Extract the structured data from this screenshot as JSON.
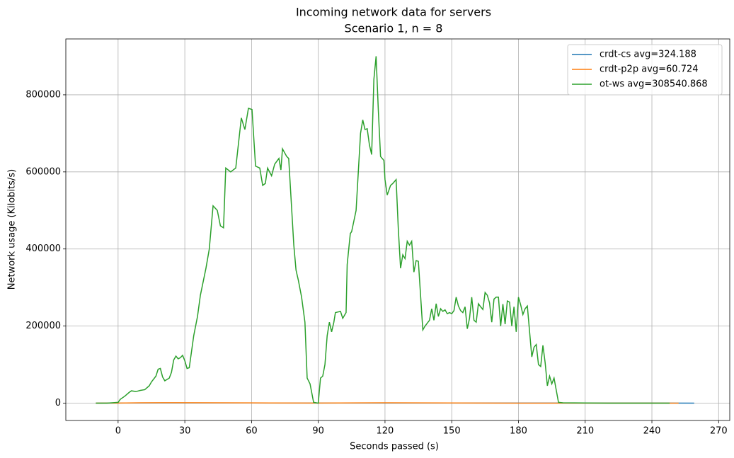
{
  "chart_data": {
    "type": "line",
    "title": "Incoming network data for servers",
    "subtitle": "Scenario 1, n = 8",
    "x_label": "Seconds passed (s)",
    "y_label": "Network usage (Kilobits/s)",
    "xlim": [
      -23.5,
      275
    ],
    "ylim": [
      -45000,
      945000
    ],
    "xticks": [
      0,
      30,
      60,
      90,
      120,
      150,
      180,
      210,
      240,
      270
    ],
    "yticks": [
      0,
      200000,
      400000,
      600000,
      800000
    ],
    "grid": true,
    "legend": "upper right",
    "series": [
      {
        "name": "crdt-cs avg=324.188",
        "color": "#1f77b4",
        "x": [
          -10,
          0,
          20,
          60,
          120,
          180,
          240,
          259
        ],
        "values": [
          0,
          300,
          400,
          350,
          320,
          300,
          280,
          0
        ]
      },
      {
        "name": "crdt-p2p avg=60.724",
        "color": "#ff7f0e",
        "x": [
          -10,
          0,
          10,
          20,
          60,
          90,
          120,
          180,
          240,
          252
        ],
        "values": [
          0,
          200,
          800,
          1200,
          600,
          200,
          900,
          100,
          50,
          0
        ]
      },
      {
        "name": "ot-ws avg=308540.868",
        "color": "#2ca02c",
        "x": [
          -10,
          -5,
          0,
          1,
          3,
          5,
          6,
          8,
          10,
          12,
          14,
          15,
          17,
          18,
          19,
          20,
          21,
          23,
          24,
          25,
          26,
          27,
          28,
          29,
          30,
          31,
          32,
          34,
          35.7,
          37,
          39.5,
          41,
          42.7,
          44.6,
          46,
          47.4,
          48.4,
          50.6,
          52.9,
          55.4,
          57,
          58.6,
          60.2,
          61.8,
          63.7,
          65,
          66.2,
          67.2,
          69,
          70.4,
          72.3,
          73.2,
          73.9,
          75.8,
          76.7,
          79,
          80,
          81,
          82.5,
          84,
          85,
          86.3,
          87.9,
          90,
          91,
          92,
          93,
          94,
          95,
          96,
          97,
          97.7,
          100,
          101,
          102.5,
          103,
          104.4,
          105,
          107,
          109,
          110,
          111,
          112,
          113,
          114,
          115,
          116,
          117,
          118,
          119.5,
          120,
          121,
          122.5,
          123.5,
          125,
          126,
          127,
          128,
          129,
          130,
          131,
          132,
          133,
          134,
          135,
          137,
          138,
          140,
          141,
          142,
          143,
          144,
          145,
          146,
          147,
          148,
          149,
          150,
          151,
          152,
          153,
          154,
          155,
          156,
          157,
          158,
          159,
          160,
          161,
          162,
          163,
          164,
          165,
          166,
          167,
          168,
          169,
          170,
          171,
          172,
          173,
          174,
          175,
          176,
          177,
          178,
          179,
          180,
          181,
          182,
          183,
          184,
          186,
          187,
          188,
          189,
          190,
          191,
          192,
          193,
          194,
          195,
          196,
          198,
          200,
          210,
          220,
          240,
          248
        ],
        "values": [
          0,
          0,
          2000,
          10000,
          18000,
          28000,
          32000,
          30000,
          33000,
          35000,
          45000,
          55000,
          70000,
          88000,
          90000,
          68000,
          58000,
          65000,
          80000,
          112000,
          122000,
          115000,
          118000,
          124000,
          110000,
          90000,
          92000,
          175000,
          225000,
          280000,
          350000,
          400000,
          512000,
          500000,
          460000,
          455000,
          610000,
          600000,
          610000,
          740000,
          710000,
          765000,
          762000,
          615000,
          610000,
          565000,
          570000,
          610000,
          590000,
          620000,
          635000,
          605000,
          660000,
          640000,
          635000,
          410000,
          345000,
          320000,
          275000,
          210000,
          65000,
          50000,
          2000,
          0,
          65000,
          70000,
          100000,
          175000,
          210000,
          185000,
          210000,
          235000,
          238000,
          220000,
          235000,
          360000,
          440000,
          445000,
          500000,
          700000,
          735000,
          710000,
          712000,
          670000,
          645000,
          840000,
          900000,
          760000,
          640000,
          630000,
          580000,
          540000,
          565000,
          570000,
          580000,
          450000,
          350000,
          385000,
          375000,
          420000,
          410000,
          420000,
          340000,
          370000,
          368000,
          190000,
          200000,
          215000,
          245000,
          215000,
          258000,
          225000,
          245000,
          238000,
          242000,
          232000,
          235000,
          232000,
          240000,
          275000,
          252000,
          240000,
          235000,
          250000,
          193000,
          220000,
          275000,
          215000,
          210000,
          258000,
          250000,
          243000,
          287000,
          280000,
          260000,
          210000,
          270000,
          275000,
          275000,
          200000,
          257000,
          205000,
          265000,
          262000,
          200000,
          250000,
          185000,
          275000,
          255000,
          230000,
          245000,
          252000,
          120000,
          145000,
          152000,
          100000,
          95000,
          150000,
          105000,
          45000,
          70000,
          50000,
          65000,
          2000,
          1000,
          500,
          0,
          0,
          0
        ]
      }
    ]
  }
}
